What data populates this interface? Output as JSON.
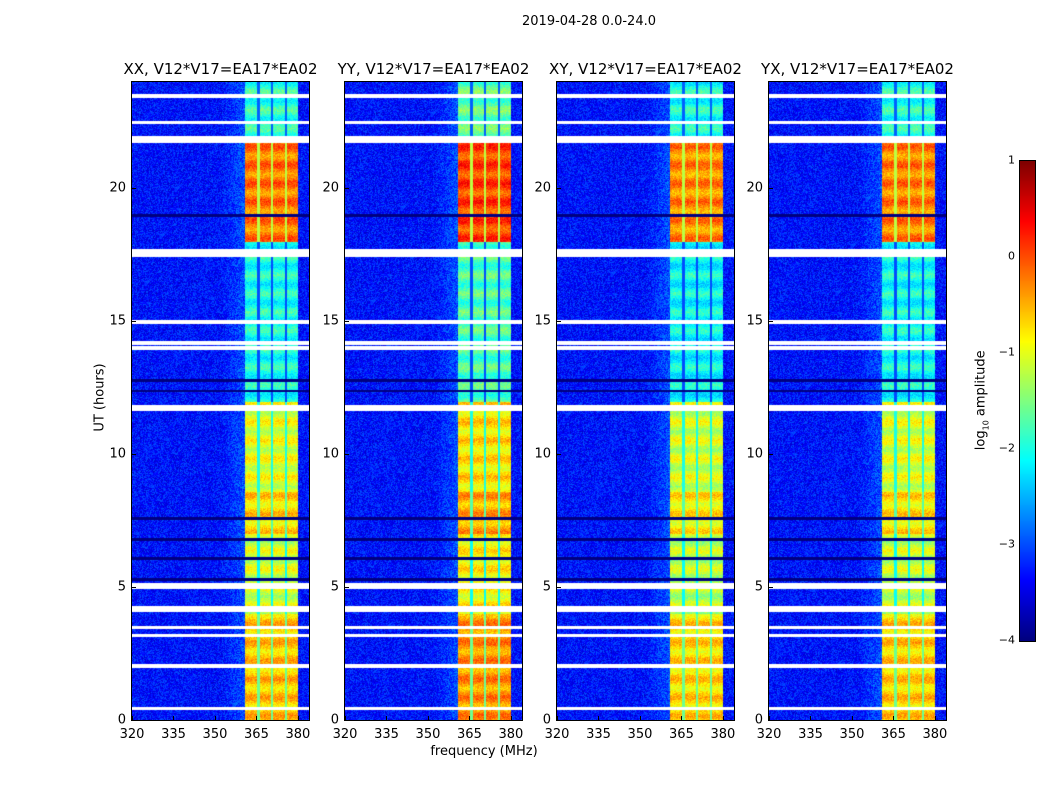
{
  "chart_data": {
    "type": "heatmap",
    "title": "2019-04-28 0.0-24.0",
    "xlabel": "frequency (MHz)",
    "ylabel": "UT (hours)",
    "xlim": [
      320,
      384
    ],
    "ylim": [
      0,
      24
    ],
    "xticks": [
      "320",
      "335",
      "350",
      "365",
      "380"
    ],
    "xtick_values": [
      320,
      335,
      350,
      365,
      380
    ],
    "yticks": [
      "0",
      "5",
      "10",
      "15",
      "20"
    ],
    "ytick_values": [
      0,
      5,
      10,
      15,
      20
    ],
    "panels": [
      {
        "title": "XX, V12*V17=EA17*EA02",
        "band_start": 360.5,
        "gain": 0.0
      },
      {
        "title": "YY, V12*V17=EA17*EA02",
        "band_start": 360.5,
        "gain": 0.25
      },
      {
        "title": "XY, V12*V17=EA17*EA02",
        "band_start": 360.5,
        "gain": -0.1
      },
      {
        "title": "YX, V12*V17=EA17*EA02",
        "band_start": 360.5,
        "gain": -0.05
      }
    ],
    "band_edges_mhz": [
      360.5,
      365.5,
      370.5,
      375.5,
      380.0
    ],
    "background_log10": -3.3,
    "band_level_by_time": [
      {
        "from": 0,
        "to": 4,
        "level": -0.6
      },
      {
        "from": 4,
        "to": 7,
        "level": -1.1
      },
      {
        "from": 7,
        "to": 8.6,
        "level": -0.7
      },
      {
        "from": 8.6,
        "to": 12,
        "level": -1.0
      },
      {
        "from": 12,
        "to": 18,
        "level": -2.0
      },
      {
        "from": 18,
        "to": 22,
        "level": -0.2
      },
      {
        "from": 22,
        "to": 24,
        "level": -1.9
      }
    ],
    "flagged_hours": [
      0.45,
      2.05,
      3.2,
      3.5,
      4.15,
      4.25,
      5.0,
      5.1,
      11.7,
      11.8,
      14.0,
      14.2,
      15.0,
      17.5,
      17.65,
      21.8,
      21.9,
      22.5,
      23.5
    ],
    "low_hours": [
      5.3,
      6.1,
      6.8,
      7.6,
      12.4,
      12.8,
      19.0
    ],
    "colorbar": {
      "label": "log10 amplitude",
      "label_main": "log",
      "label_sub": "10",
      "label_rest": " amplitude",
      "range": [
        -4,
        1
      ],
      "ticks": [
        "1",
        "0",
        "−1",
        "−2",
        "−3",
        "−4"
      ],
      "tick_values": [
        1,
        0,
        -1,
        -2,
        -3,
        -4
      ],
      "colormap": "jet"
    }
  }
}
